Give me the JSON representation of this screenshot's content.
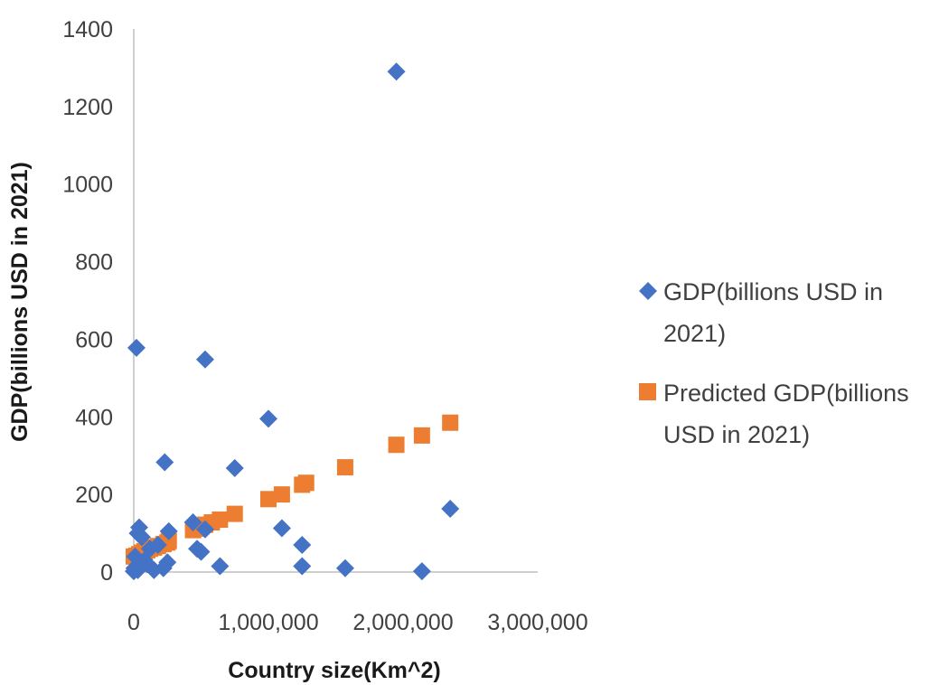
{
  "chart_data": {
    "type": "scatter",
    "title": "",
    "xlabel": "Country size(Km^2)",
    "ylabel": "GDP(billions USD in 2021)",
    "xlim": [
      0,
      3000000
    ],
    "ylim": [
      0,
      1400
    ],
    "x_ticks": [
      0,
      1000000,
      2000000,
      3000000
    ],
    "x_tick_labels": [
      "0",
      "1,000,000",
      "2,000,000",
      "3,000,000"
    ],
    "y_ticks": [
      0,
      200,
      400,
      600,
      800,
      1000,
      1200,
      1400
    ],
    "y_tick_labels": [
      "0",
      "200",
      "400",
      "600",
      "800",
      "1000",
      "1200",
      "1400"
    ],
    "grid": false,
    "legend_position": "right",
    "series": [
      {
        "name": "GDP(billions USD in 2021)",
        "marker": "diamond",
        "color": "#4472C4",
        "points": [
          [
            20000,
            578
          ],
          [
            530000,
            548
          ],
          [
            1000000,
            395
          ],
          [
            1950000,
            1290
          ],
          [
            230000,
            283
          ],
          [
            750000,
            268
          ],
          [
            2350000,
            163
          ],
          [
            1100000,
            113
          ],
          [
            1250000,
            70
          ],
          [
            1250000,
            15
          ],
          [
            1570000,
            10
          ],
          [
            640000,
            15
          ],
          [
            2140000,
            2
          ],
          [
            440000,
            128
          ],
          [
            530000,
            110
          ],
          [
            470000,
            60
          ],
          [
            500000,
            52
          ],
          [
            260000,
            105
          ],
          [
            40000,
            115
          ],
          [
            30000,
            100
          ],
          [
            60000,
            90
          ],
          [
            10000,
            40
          ],
          [
            5000,
            10
          ],
          [
            30000,
            5
          ],
          [
            100000,
            20
          ],
          [
            150000,
            5
          ],
          [
            220000,
            10
          ],
          [
            250000,
            25
          ],
          [
            120000,
            60
          ],
          [
            80000,
            30
          ],
          [
            180000,
            70
          ],
          [
            0,
            2
          ]
        ]
      },
      {
        "name": "Predicted GDP(billions USD in 2021)",
        "marker": "square",
        "color": "#ED7D31",
        "points": [
          [
            0,
            40
          ],
          [
            20000,
            42
          ],
          [
            40000,
            46
          ],
          [
            60000,
            50
          ],
          [
            80000,
            54
          ],
          [
            100000,
            56
          ],
          [
            120000,
            60
          ],
          [
            150000,
            63
          ],
          [
            180000,
            67
          ],
          [
            220000,
            72
          ],
          [
            250000,
            76
          ],
          [
            260000,
            80
          ],
          [
            440000,
            108
          ],
          [
            470000,
            112
          ],
          [
            500000,
            117
          ],
          [
            530000,
            122
          ],
          [
            580000,
            128
          ],
          [
            640000,
            135
          ],
          [
            750000,
            150
          ],
          [
            1000000,
            188
          ],
          [
            1100000,
            200
          ],
          [
            1250000,
            225
          ],
          [
            1280000,
            230
          ],
          [
            1570000,
            270
          ],
          [
            1950000,
            328
          ],
          [
            2140000,
            352
          ],
          [
            2350000,
            385
          ]
        ]
      }
    ]
  },
  "legend": {
    "items": [
      {
        "lines": [
          "GDP(billions USD in",
          "2021)"
        ]
      },
      {
        "lines": [
          "Predicted GDP(billions",
          "USD in 2021)"
        ]
      }
    ]
  }
}
